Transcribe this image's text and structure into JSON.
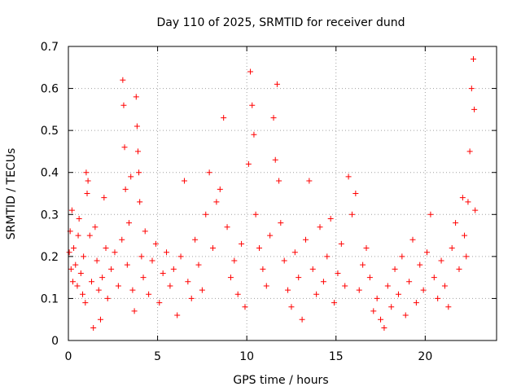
{
  "chart_data": {
    "type": "scatter",
    "title": "Day 110 of 2025, SRMTID for receiver dund",
    "xlabel": "GPS time / hours",
    "ylabel": "SRMTID / TECUs",
    "xlim": [
      0,
      24
    ],
    "ylim": [
      0,
      0.7
    ],
    "xticks": [
      0,
      5,
      10,
      15,
      20
    ],
    "xtick_labels": [
      "0",
      "5",
      "10",
      "15",
      "20"
    ],
    "yticks": [
      0,
      0.1,
      0.2,
      0.3,
      0.4,
      0.5,
      0.6,
      0.7
    ],
    "ytick_labels": [
      "0",
      "0.1",
      "0.2",
      "0.3",
      "0.4",
      "0.5",
      "0.6",
      "0.7"
    ],
    "grid": true,
    "marker": "+",
    "color": "#ff0000",
    "series": [
      {
        "name": "SRMTID",
        "points": [
          [
            0.05,
            0.21
          ],
          [
            0.1,
            0.26
          ],
          [
            0.15,
            0.17
          ],
          [
            0.2,
            0.31
          ],
          [
            0.25,
            0.14
          ],
          [
            0.3,
            0.22
          ],
          [
            0.4,
            0.18
          ],
          [
            0.5,
            0.13
          ],
          [
            0.55,
            0.25
          ],
          [
            0.6,
            0.29
          ],
          [
            0.7,
            0.16
          ],
          [
            0.8,
            0.11
          ],
          [
            0.85,
            0.2
          ],
          [
            0.95,
            0.09
          ],
          [
            1.0,
            0.4
          ],
          [
            1.05,
            0.35
          ],
          [
            1.1,
            0.38
          ],
          [
            1.2,
            0.25
          ],
          [
            1.3,
            0.14
          ],
          [
            1.4,
            0.03
          ],
          [
            1.5,
            0.27
          ],
          [
            1.6,
            0.19
          ],
          [
            1.7,
            0.12
          ],
          [
            1.8,
            0.05
          ],
          [
            1.9,
            0.15
          ],
          [
            2.0,
            0.34
          ],
          [
            2.1,
            0.22
          ],
          [
            2.2,
            0.1
          ],
          [
            2.4,
            0.17
          ],
          [
            2.6,
            0.21
          ],
          [
            2.8,
            0.13
          ],
          [
            3.0,
            0.24
          ],
          [
            3.05,
            0.62
          ],
          [
            3.1,
            0.56
          ],
          [
            3.15,
            0.46
          ],
          [
            3.2,
            0.36
          ],
          [
            3.3,
            0.18
          ],
          [
            3.4,
            0.28
          ],
          [
            3.5,
            0.39
          ],
          [
            3.6,
            0.12
          ],
          [
            3.7,
            0.07
          ],
          [
            3.8,
            0.58
          ],
          [
            3.85,
            0.51
          ],
          [
            3.9,
            0.45
          ],
          [
            3.95,
            0.4
          ],
          [
            4.0,
            0.33
          ],
          [
            4.1,
            0.2
          ],
          [
            4.2,
            0.15
          ],
          [
            4.3,
            0.26
          ],
          [
            4.5,
            0.11
          ],
          [
            4.7,
            0.19
          ],
          [
            4.9,
            0.23
          ],
          [
            5.1,
            0.09
          ],
          [
            5.3,
            0.16
          ],
          [
            5.5,
            0.21
          ],
          [
            5.7,
            0.13
          ],
          [
            5.9,
            0.17
          ],
          [
            6.1,
            0.06
          ],
          [
            6.3,
            0.2
          ],
          [
            6.5,
            0.38
          ],
          [
            6.7,
            0.14
          ],
          [
            6.9,
            0.1
          ],
          [
            7.1,
            0.24
          ],
          [
            7.3,
            0.18
          ],
          [
            7.5,
            0.12
          ],
          [
            7.7,
            0.3
          ],
          [
            7.9,
            0.4
          ],
          [
            8.1,
            0.22
          ],
          [
            8.3,
            0.33
          ],
          [
            8.5,
            0.36
          ],
          [
            8.7,
            0.53
          ],
          [
            8.9,
            0.27
          ],
          [
            9.1,
            0.15
          ],
          [
            9.3,
            0.19
          ],
          [
            9.5,
            0.11
          ],
          [
            9.7,
            0.23
          ],
          [
            9.9,
            0.08
          ],
          [
            10.1,
            0.42
          ],
          [
            10.2,
            0.64
          ],
          [
            10.3,
            0.56
          ],
          [
            10.4,
            0.49
          ],
          [
            10.5,
            0.3
          ],
          [
            10.7,
            0.22
          ],
          [
            10.9,
            0.17
          ],
          [
            11.1,
            0.13
          ],
          [
            11.3,
            0.25
          ],
          [
            11.5,
            0.53
          ],
          [
            11.6,
            0.43
          ],
          [
            11.7,
            0.61
          ],
          [
            11.8,
            0.38
          ],
          [
            11.9,
            0.28
          ],
          [
            12.1,
            0.19
          ],
          [
            12.3,
            0.12
          ],
          [
            12.5,
            0.08
          ],
          [
            12.7,
            0.21
          ],
          [
            12.9,
            0.15
          ],
          [
            13.1,
            0.05
          ],
          [
            13.3,
            0.24
          ],
          [
            13.5,
            0.38
          ],
          [
            13.7,
            0.17
          ],
          [
            13.9,
            0.11
          ],
          [
            14.1,
            0.27
          ],
          [
            14.3,
            0.14
          ],
          [
            14.5,
            0.2
          ],
          [
            14.7,
            0.29
          ],
          [
            14.9,
            0.09
          ],
          [
            15.1,
            0.16
          ],
          [
            15.3,
            0.23
          ],
          [
            15.5,
            0.13
          ],
          [
            15.7,
            0.39
          ],
          [
            15.9,
            0.3
          ],
          [
            16.1,
            0.35
          ],
          [
            16.3,
            0.12
          ],
          [
            16.5,
            0.18
          ],
          [
            16.7,
            0.22
          ],
          [
            16.9,
            0.15
          ],
          [
            17.1,
            0.07
          ],
          [
            17.3,
            0.1
          ],
          [
            17.5,
            0.05
          ],
          [
            17.7,
            0.03
          ],
          [
            17.9,
            0.13
          ],
          [
            18.1,
            0.08
          ],
          [
            18.3,
            0.17
          ],
          [
            18.5,
            0.11
          ],
          [
            18.7,
            0.2
          ],
          [
            18.9,
            0.06
          ],
          [
            19.1,
            0.14
          ],
          [
            19.3,
            0.24
          ],
          [
            19.5,
            0.09
          ],
          [
            19.7,
            0.18
          ],
          [
            19.9,
            0.12
          ],
          [
            20.1,
            0.21
          ],
          [
            20.3,
            0.3
          ],
          [
            20.5,
            0.15
          ],
          [
            20.7,
            0.1
          ],
          [
            20.9,
            0.19
          ],
          [
            21.1,
            0.13
          ],
          [
            21.3,
            0.08
          ],
          [
            21.5,
            0.22
          ],
          [
            21.7,
            0.28
          ],
          [
            21.9,
            0.17
          ],
          [
            22.1,
            0.34
          ],
          [
            22.2,
            0.25
          ],
          [
            22.3,
            0.2
          ],
          [
            22.4,
            0.33
          ],
          [
            22.5,
            0.45
          ],
          [
            22.6,
            0.6
          ],
          [
            22.7,
            0.67
          ],
          [
            22.75,
            0.55
          ],
          [
            22.8,
            0.31
          ]
        ]
      }
    ]
  }
}
